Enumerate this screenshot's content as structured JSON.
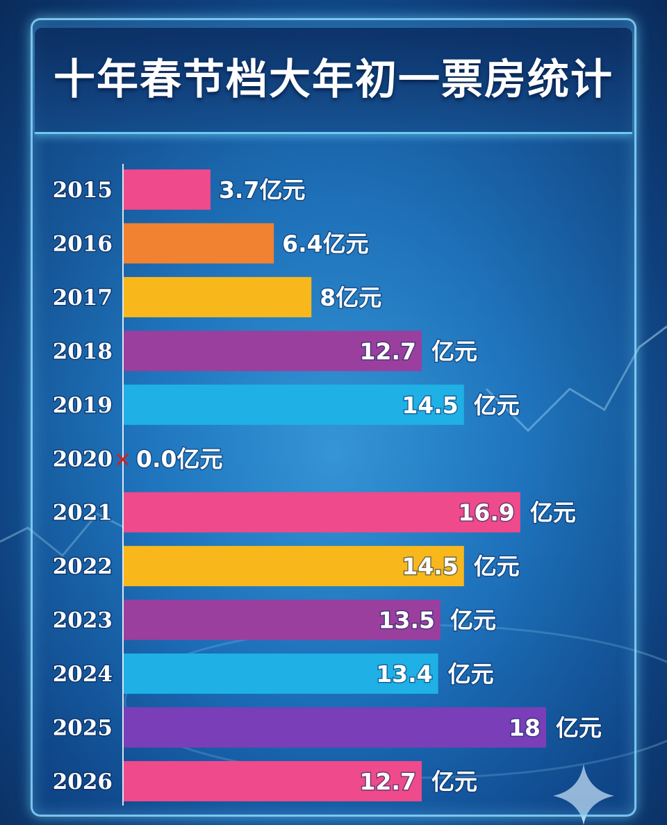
{
  "chart_data": {
    "type": "bar",
    "orientation": "horizontal",
    "title": "十年春节档大年初一票房统计",
    "categories": [
      "2015",
      "2016",
      "2017",
      "2018",
      "2019",
      "2020",
      "2021",
      "2022",
      "2023",
      "2024",
      "2025",
      "2026"
    ],
    "values": [
      3.7,
      6.4,
      8,
      12.7,
      14.5,
      0.0,
      16.9,
      14.5,
      13.5,
      13.4,
      18,
      12.7
    ],
    "value_labels": [
      "3.7",
      "6.4",
      "8",
      "12.7",
      "14.5",
      "0.0",
      "16.9",
      "14.5",
      "13.5",
      "13.4",
      "18",
      "12.7"
    ],
    "unit": "亿元",
    "xlim": [
      0,
      18
    ],
    "grid": false,
    "marker_2020": "✕",
    "colors": [
      "#ee4a8c",
      "#f08232",
      "#f8b81c",
      "#9a3f9e",
      "#1fb0e6",
      "#cc2222",
      "#ee4a8c",
      "#f8b81c",
      "#9a3f9e",
      "#1fb0e6",
      "#7a3fb8",
      "#ee4a8c"
    ]
  }
}
